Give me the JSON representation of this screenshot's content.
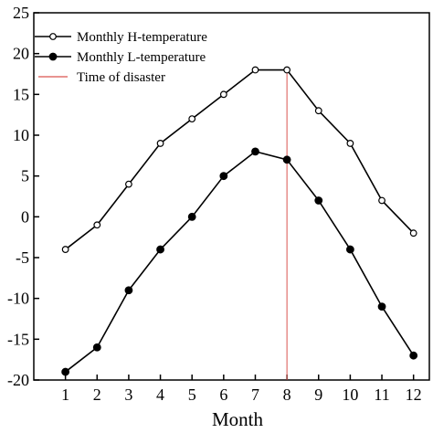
{
  "chart_data": {
    "type": "line",
    "xlabel": "Month",
    "ylabel": "",
    "x": [
      1,
      2,
      3,
      4,
      5,
      6,
      7,
      8,
      9,
      10,
      11,
      12
    ],
    "x_ticks": [
      "1",
      "2",
      "3",
      "4",
      "5",
      "6",
      "7",
      "8",
      "9",
      "10",
      "11",
      "12"
    ],
    "xlim": [
      0,
      12.5
    ],
    "ylim": [
      -20,
      25
    ],
    "y_ticks": [
      "-20",
      "-15",
      "-10",
      "-5",
      "0",
      "5",
      "10",
      "15",
      "20",
      "25"
    ],
    "grid": false,
    "legend_position": "top-left",
    "series": [
      {
        "name": "Monthly H-temperature",
        "marker": "open-circle",
        "color": "#000000",
        "values": [
          -4,
          -1,
          4,
          9,
          12,
          15,
          18,
          18,
          13,
          9,
          2,
          -2
        ]
      },
      {
        "name": "Monthly L-temperature",
        "marker": "filled-circle",
        "color": "#000000",
        "values": [
          -19,
          -16,
          -9,
          -4,
          0,
          5,
          8,
          7,
          2,
          -4,
          -11,
          -17
        ]
      }
    ],
    "reference_lines": [
      {
        "name": "Time of disaster",
        "orientation": "vertical",
        "x": 8,
        "color": "#d9534f"
      }
    ]
  }
}
